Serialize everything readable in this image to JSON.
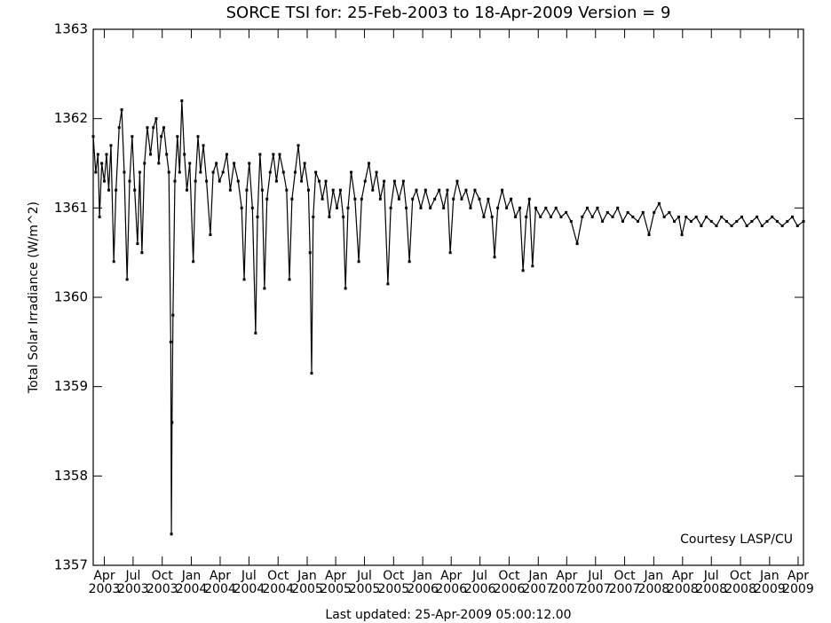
{
  "chart_data": {
    "type": "line",
    "title": "SORCE TSI for: 25-Feb-2003 to 18-Apr-2009 Version = 9",
    "y_label": "Total Solar Irradiance (W/m^2)",
    "footer": "Last updated: 25-Apr-2009 05:00:12.00",
    "annotation": "Courtesy LASP/CU",
    "color": "#000000",
    "grid": false,
    "xlim": [
      "2003-02-25",
      "2009-04-18"
    ],
    "ylim": [
      1357,
      1363
    ],
    "yticks": [
      1357,
      1358,
      1359,
      1360,
      1361,
      1362,
      1363
    ],
    "xticks": [
      {
        "value": "2003-04-01",
        "label": "Apr 2003"
      },
      {
        "value": "2003-07-01",
        "label": "Jul 2003"
      },
      {
        "value": "2003-10-01",
        "label": "Oct 2003"
      },
      {
        "value": "2004-01-01",
        "label": "Jan 2004"
      },
      {
        "value": "2004-04-01",
        "label": "Apr 2004"
      },
      {
        "value": "2004-07-01",
        "label": "Jul 2004"
      },
      {
        "value": "2004-10-01",
        "label": "Oct 2004"
      },
      {
        "value": "2005-01-01",
        "label": "Jan 2005"
      },
      {
        "value": "2005-04-01",
        "label": "Apr 2005"
      },
      {
        "value": "2005-07-01",
        "label": "Jul 2005"
      },
      {
        "value": "2005-10-01",
        "label": "Oct 2005"
      },
      {
        "value": "2006-01-01",
        "label": "Jan 2006"
      },
      {
        "value": "2006-04-01",
        "label": "Apr 2006"
      },
      {
        "value": "2006-07-01",
        "label": "Jul 2006"
      },
      {
        "value": "2006-10-01",
        "label": "Oct 2006"
      },
      {
        "value": "2007-01-01",
        "label": "Jan 2007"
      },
      {
        "value": "2007-04-01",
        "label": "Apr 2007"
      },
      {
        "value": "2007-07-01",
        "label": "Jul 2007"
      },
      {
        "value": "2007-10-01",
        "label": "Oct 2007"
      },
      {
        "value": "2008-01-01",
        "label": "Jan 2008"
      },
      {
        "value": "2008-04-01",
        "label": "Apr 2008"
      },
      {
        "value": "2008-07-01",
        "label": "Jul 2008"
      },
      {
        "value": "2008-10-01",
        "label": "Oct 2008"
      },
      {
        "value": "2009-01-01",
        "label": "Jan 2009"
      },
      {
        "value": "2009-04-01",
        "label": "Apr 2009"
      }
    ],
    "x": [
      "2003-02-25",
      "2003-03-05",
      "2003-03-12",
      "2003-03-17",
      "2003-03-24",
      "2003-04-01",
      "2003-04-08",
      "2003-04-15",
      "2003-04-22",
      "2003-05-01",
      "2003-05-08",
      "2003-05-18",
      "2003-05-26",
      "2003-06-03",
      "2003-06-12",
      "2003-06-20",
      "2003-06-28",
      "2003-07-06",
      "2003-07-15",
      "2003-07-22",
      "2003-07-29",
      "2003-08-06",
      "2003-08-15",
      "2003-08-25",
      "2003-09-03",
      "2003-09-12",
      "2003-09-20",
      "2003-09-28",
      "2003-10-06",
      "2003-10-15",
      "2003-10-22",
      "2003-10-28",
      "2003-10-30",
      "2003-11-01",
      "2003-11-04",
      "2003-11-10",
      "2003-11-18",
      "2003-11-25",
      "2003-12-02",
      "2003-12-10",
      "2003-12-18",
      "2003-12-27",
      "2004-01-07",
      "2004-01-14",
      "2004-01-22",
      "2004-01-30",
      "2004-02-08",
      "2004-02-18",
      "2004-03-01",
      "2004-03-10",
      "2004-03-20",
      "2004-03-30",
      "2004-04-10",
      "2004-04-22",
      "2004-05-03",
      "2004-05-15",
      "2004-05-28",
      "2004-06-08",
      "2004-06-16",
      "2004-06-24",
      "2004-07-02",
      "2004-07-12",
      "2004-07-22",
      "2004-07-28",
      "2004-08-05",
      "2004-08-12",
      "2004-08-19",
      "2004-08-27",
      "2004-09-06",
      "2004-09-16",
      "2004-09-26",
      "2004-10-06",
      "2004-10-18",
      "2004-10-28",
      "2004-11-06",
      "2004-11-14",
      "2004-11-24",
      "2004-12-04",
      "2004-12-14",
      "2004-12-24",
      "2005-01-05",
      "2005-01-10",
      "2005-01-15",
      "2005-01-20",
      "2005-01-28",
      "2005-02-08",
      "2005-02-18",
      "2005-03-01",
      "2005-03-12",
      "2005-03-24",
      "2005-04-05",
      "2005-04-16",
      "2005-04-25",
      "2005-05-02",
      "2005-05-10",
      "2005-05-20",
      "2005-06-01",
      "2005-06-13",
      "2005-06-22",
      "2005-07-03",
      "2005-07-15",
      "2005-07-27",
      "2005-08-08",
      "2005-08-20",
      "2005-09-01",
      "2005-09-13",
      "2005-09-22",
      "2005-10-04",
      "2005-10-18",
      "2005-11-01",
      "2005-11-10",
      "2005-11-20",
      "2005-11-30",
      "2005-12-12",
      "2005-12-26",
      "2006-01-10",
      "2006-01-25",
      "2006-02-08",
      "2006-02-22",
      "2006-03-08",
      "2006-03-20",
      "2006-03-29",
      "2006-04-08",
      "2006-04-20",
      "2006-05-04",
      "2006-05-18",
      "2006-06-01",
      "2006-06-15",
      "2006-06-29",
      "2006-07-13",
      "2006-07-27",
      "2006-08-08",
      "2006-08-16",
      "2006-08-26",
      "2006-09-09",
      "2006-09-23",
      "2006-10-07",
      "2006-10-21",
      "2006-11-04",
      "2006-11-14",
      "2006-11-24",
      "2006-12-04",
      "2006-12-14",
      "2006-12-24",
      "2007-01-08",
      "2007-01-25",
      "2007-02-10",
      "2007-02-26",
      "2007-03-14",
      "2007-03-30",
      "2007-04-15",
      "2007-05-04",
      "2007-05-20",
      "2007-06-05",
      "2007-06-21",
      "2007-07-07",
      "2007-07-23",
      "2007-08-08",
      "2007-08-24",
      "2007-09-09",
      "2007-09-25",
      "2007-10-11",
      "2007-10-27",
      "2007-11-12",
      "2007-11-28",
      "2007-12-17",
      "2008-01-02",
      "2008-01-18",
      "2008-02-03",
      "2008-02-19",
      "2008-03-06",
      "2008-03-20",
      "2008-03-30",
      "2008-04-12",
      "2008-04-28",
      "2008-05-14",
      "2008-05-30",
      "2008-06-15",
      "2008-07-01",
      "2008-07-17",
      "2008-08-02",
      "2008-08-18",
      "2008-09-03",
      "2008-09-19",
      "2008-10-05",
      "2008-10-21",
      "2008-11-06",
      "2008-11-22",
      "2008-12-08",
      "2008-12-24",
      "2009-01-09",
      "2009-01-25",
      "2009-02-10",
      "2009-02-26",
      "2009-03-14",
      "2009-03-30",
      "2009-04-18"
    ],
    "values": [
      1361.8,
      1361.4,
      1361.6,
      1360.9,
      1361.5,
      1361.3,
      1361.6,
      1361.2,
      1361.7,
      1360.4,
      1361.2,
      1361.9,
      1362.1,
      1361.4,
      1360.2,
      1361.3,
      1361.8,
      1361.2,
      1360.6,
      1361.4,
      1360.5,
      1361.5,
      1361.9,
      1361.6,
      1361.9,
      1362.0,
      1361.5,
      1361.8,
      1361.9,
      1361.6,
      1361.4,
      1359.5,
      1357.35,
      1358.6,
      1359.8,
      1361.3,
      1361.8,
      1361.4,
      1362.2,
      1361.6,
      1361.2,
      1361.5,
      1360.4,
      1361.3,
      1361.8,
      1361.4,
      1361.7,
      1361.3,
      1360.7,
      1361.4,
      1361.5,
      1361.3,
      1361.4,
      1361.6,
      1361.2,
      1361.5,
      1361.3,
      1361.0,
      1360.2,
      1361.2,
      1361.5,
      1361.0,
      1359.6,
      1360.9,
      1361.6,
      1361.2,
      1360.1,
      1361.1,
      1361.4,
      1361.6,
      1361.3,
      1361.6,
      1361.4,
      1361.2,
      1360.2,
      1361.1,
      1361.4,
      1361.7,
      1361.3,
      1361.5,
      1361.2,
      1360.5,
      1359.15,
      1360.9,
      1361.4,
      1361.3,
      1361.1,
      1361.3,
      1360.9,
      1361.2,
      1361.0,
      1361.2,
      1360.9,
      1360.1,
      1361.0,
      1361.4,
      1361.1,
      1360.4,
      1361.1,
      1361.3,
      1361.5,
      1361.2,
      1361.4,
      1361.1,
      1361.3,
      1360.15,
      1361.0,
      1361.3,
      1361.1,
      1361.3,
      1361.0,
      1360.4,
      1361.1,
      1361.2,
      1361.0,
      1361.2,
      1361.0,
      1361.1,
      1361.2,
      1361.0,
      1361.2,
      1360.5,
      1361.1,
      1361.3,
      1361.1,
      1361.2,
      1361.0,
      1361.2,
      1361.1,
      1360.9,
      1361.1,
      1360.9,
      1360.45,
      1361.0,
      1361.2,
      1361.0,
      1361.1,
      1360.9,
      1361.0,
      1360.3,
      1360.9,
      1361.1,
      1360.35,
      1361.0,
      1360.9,
      1361.0,
      1360.9,
      1361.0,
      1360.9,
      1360.95,
      1360.85,
      1360.6,
      1360.9,
      1361.0,
      1360.9,
      1361.0,
      1360.85,
      1360.95,
      1360.9,
      1361.0,
      1360.85,
      1360.95,
      1360.9,
      1360.85,
      1360.95,
      1360.7,
      1360.95,
      1361.05,
      1360.9,
      1360.95,
      1360.85,
      1360.9,
      1360.7,
      1360.9,
      1360.85,
      1360.9,
      1360.8,
      1360.9,
      1360.85,
      1360.8,
      1360.9,
      1360.85,
      1360.8,
      1360.85,
      1360.9,
      1360.8,
      1360.85,
      1360.9,
      1360.8,
      1360.85,
      1360.9,
      1360.85,
      1360.8,
      1360.85,
      1360.9,
      1360.8,
      1360.85
    ]
  }
}
